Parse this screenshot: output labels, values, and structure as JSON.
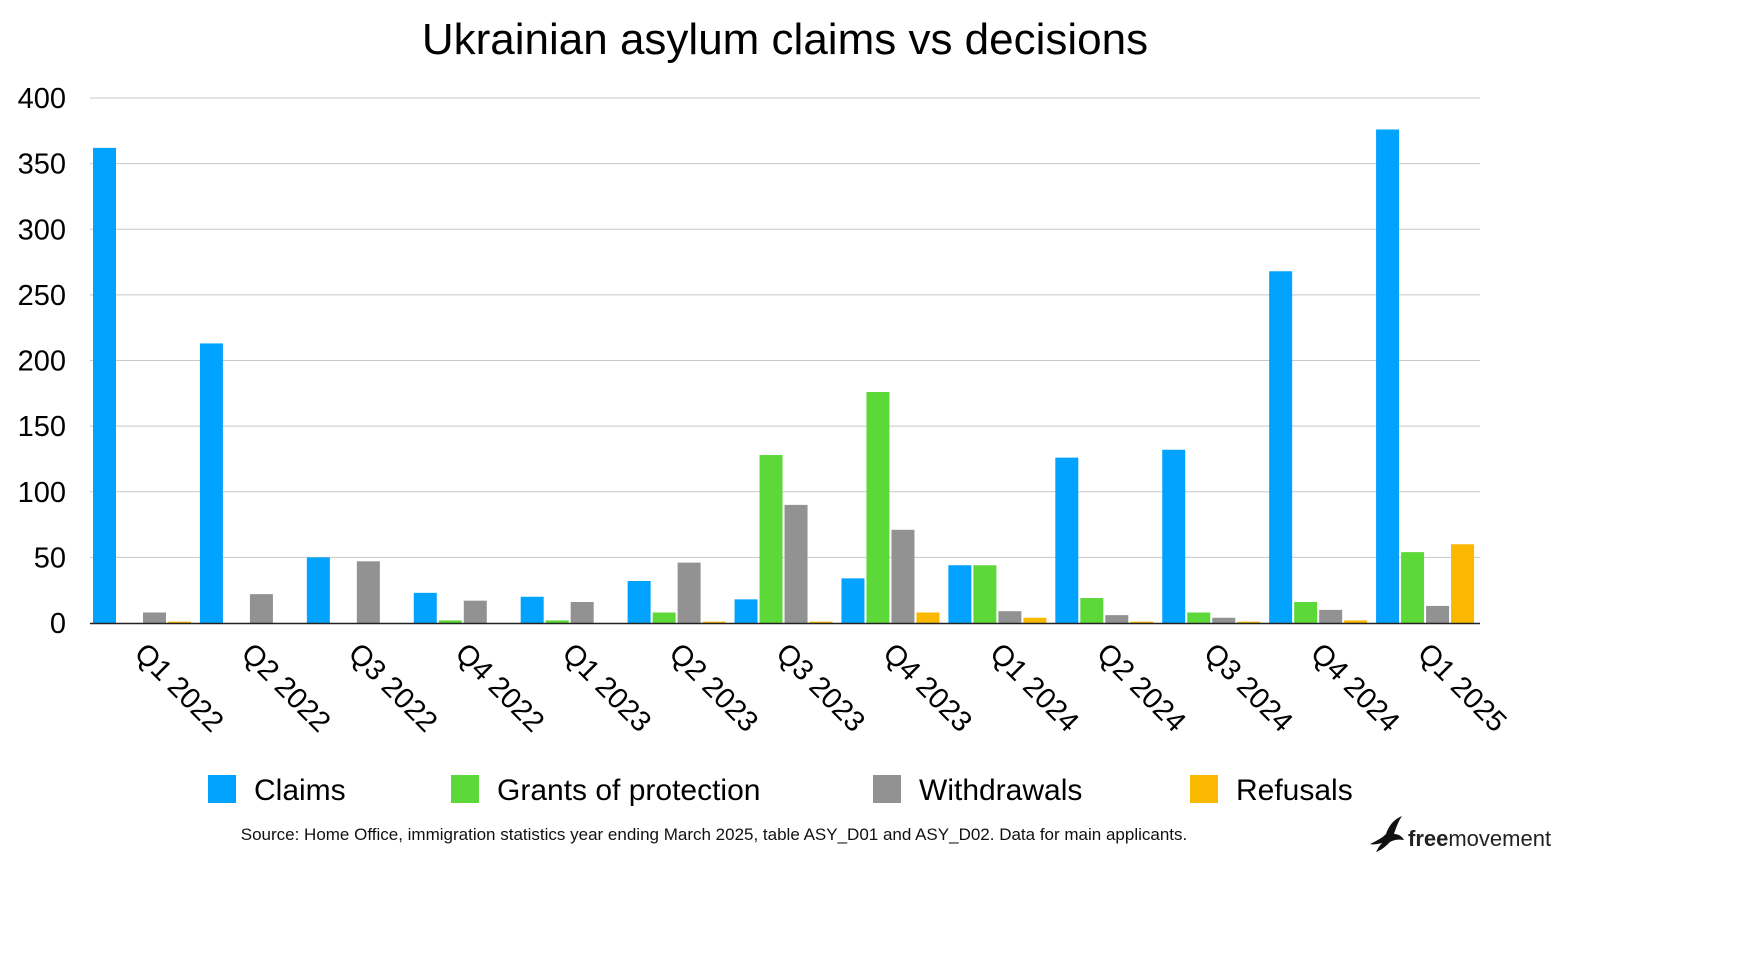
{
  "chart_data": {
    "type": "bar",
    "title": "Ukrainian asylum claims vs decisions",
    "xlabel": "",
    "ylabel": "",
    "ylim": [
      0,
      400
    ],
    "yticks": [
      "0",
      "50",
      "100",
      "150",
      "200",
      "250",
      "300",
      "350",
      "400"
    ],
    "grid": true,
    "legend_position": "bottom",
    "categories": [
      "Q1 2022",
      "Q2 2022",
      "Q3 2022",
      "Q4 2022",
      "Q1 2023",
      "Q2 2023",
      "Q3 2023",
      "Q4 2023",
      "Q1 2024",
      "Q2 2024",
      "Q3 2024",
      "Q4 2024",
      "Q1 2025"
    ],
    "series": [
      {
        "name": "Claims",
        "color": "#02a2ff",
        "values": [
          362,
          213,
          50,
          23,
          20,
          32,
          18,
          34,
          44,
          126,
          132,
          268,
          376
        ]
      },
      {
        "name": "Grants of protection",
        "color": "#5dd839",
        "values": [
          0,
          0,
          0,
          2,
          2,
          8,
          128,
          176,
          44,
          19,
          8,
          16,
          54
        ]
      },
      {
        "name": "Withdrawals",
        "color": "#929292",
        "values": [
          8,
          22,
          47,
          17,
          16,
          46,
          90,
          71,
          9,
          6,
          4,
          10,
          13
        ]
      },
      {
        "name": "Refusals",
        "color": "#fab900",
        "values": [
          1,
          0,
          0,
          0,
          0,
          1,
          1,
          8,
          4,
          1,
          1,
          2,
          60
        ]
      }
    ],
    "source": "Source: Home Office, immigration statistics year ending March 2025, table ASY_D01 and ASY_D02. Data for main applicants."
  },
  "branding": {
    "logo_part1": "free",
    "logo_part2": "movement",
    "logo_icon": "bird-icon"
  }
}
